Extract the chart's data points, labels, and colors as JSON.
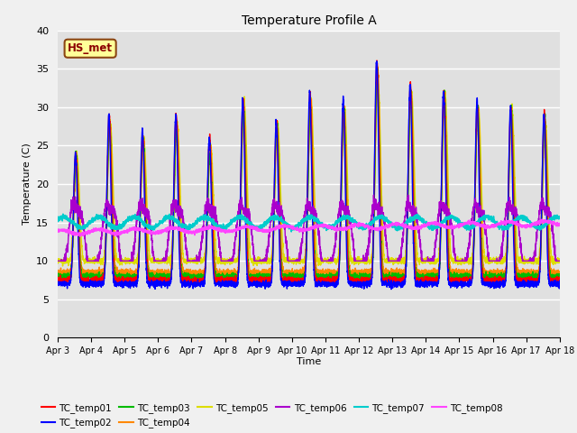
{
  "title": "Temperature Profile A",
  "xlabel": "Time",
  "ylabel": "Temperature (C)",
  "ylim": [
    0,
    40
  ],
  "annotation": "HS_met",
  "series_colors": {
    "TC_temp01": "#ff0000",
    "TC_temp02": "#0000ff",
    "TC_temp03": "#00bb00",
    "TC_temp04": "#ff8800",
    "TC_temp05": "#dddd00",
    "TC_temp06": "#aa00cc",
    "TC_temp07": "#00cccc",
    "TC_temp08": "#ff44ff"
  },
  "xtick_labels": [
    "Apr 3",
    "Apr 4",
    "Apr 5",
    "Apr 6",
    "Apr 7",
    "Apr 8",
    "Apr 9",
    "Apr 10",
    "Apr 11",
    "Apr 12",
    "Apr 13",
    "Apr 14",
    "Apr 15",
    "Apr 16",
    "Apr 17",
    "Apr 18"
  ],
  "bg_color": "#e0e0e0",
  "fig_color": "#f0f0f0",
  "grid_color": "#ffffff",
  "yticks": [
    0,
    5,
    10,
    15,
    20,
    25,
    30,
    35,
    40
  ]
}
